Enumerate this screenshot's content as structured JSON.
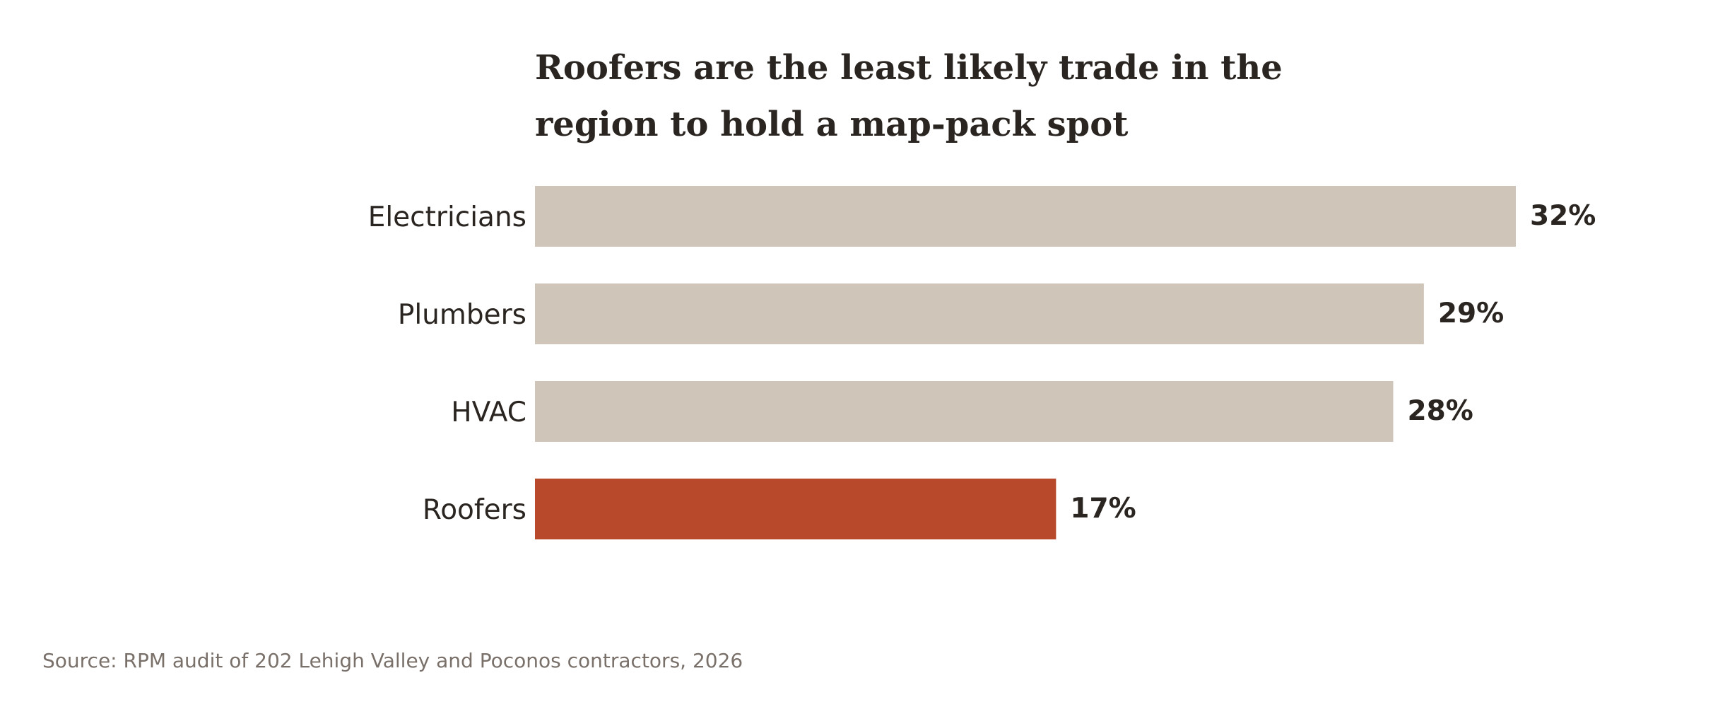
{
  "chart_data": {
    "type": "bar",
    "orientation": "horizontal",
    "title": "Roofers are the least likely trade in the region to hold a map-pack spot",
    "title_lines": [
      "Roofers are the least likely trade in the",
      "region to hold a map-pack spot"
    ],
    "categories": [
      "Electricians",
      "Plumbers",
      "HVAC",
      "Roofers"
    ],
    "values": [
      32,
      29,
      28,
      17
    ],
    "value_labels": [
      "32%",
      "29%",
      "28%",
      "17%"
    ],
    "highlight_category": "Roofers",
    "xlabel": "",
    "ylabel": "",
    "xlim": [
      0,
      32
    ],
    "grid": false,
    "source": "Source: RPM audit of 202 Lehigh Valley and Poconos contractors, 2026"
  },
  "colors": {
    "bar_default": "#d0c5b9",
    "bar_highlight": "#b84a2b",
    "text": "#2a2520",
    "source_text": "#7a706a",
    "background": "#ffffff"
  }
}
